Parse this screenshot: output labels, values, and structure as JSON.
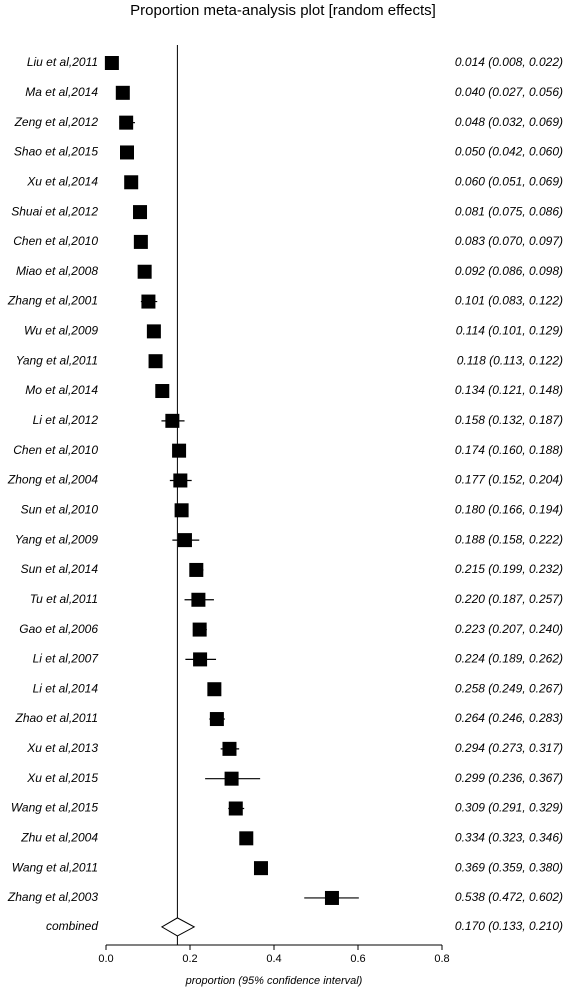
{
  "chart_data": {
    "type": "forest",
    "title": "Proportion meta-analysis plot [random effects]",
    "xlabel": "proportion (95% confidence interval)",
    "categories": [
      "Liu et al,2011",
      "Ma et al,2014",
      "Zeng et al,2012",
      "Shao et al,2015",
      "Xu et al,2014",
      "Shuai et al,2012",
      "Chen et al,2010",
      "Miao et al,2008",
      "Zhang et al,2001",
      "Wu et al,2009",
      "Yang et al,2011",
      "Mo et al,2014",
      "Li et al,2012",
      "Chen et al,2010",
      "Zhong et al,2004",
      "Sun et al,2010",
      "Yang et al,2009",
      "Sun et al,2014",
      "Tu et al,2011",
      "Gao et al,2006",
      "Li et al,2007",
      "Li et al,2014",
      "Zhao et al,2011",
      "Xu et al,2013",
      "Xu et al,2015",
      "Wang et al,2015",
      "Zhu et al,2004",
      "Wang et al,2011",
      "Zhang et al,2003"
    ],
    "values": [
      0.014,
      0.04,
      0.048,
      0.05,
      0.06,
      0.081,
      0.083,
      0.092,
      0.101,
      0.114,
      0.118,
      0.134,
      0.158,
      0.174,
      0.177,
      0.18,
      0.188,
      0.215,
      0.22,
      0.223,
      0.224,
      0.258,
      0.264,
      0.294,
      0.299,
      0.309,
      0.334,
      0.369,
      0.538
    ],
    "lower": [
      0.008,
      0.027,
      0.032,
      0.042,
      0.051,
      0.075,
      0.07,
      0.086,
      0.083,
      0.101,
      0.113,
      0.121,
      0.132,
      0.16,
      0.152,
      0.166,
      0.158,
      0.199,
      0.187,
      0.207,
      0.189,
      0.249,
      0.246,
      0.273,
      0.236,
      0.291,
      0.323,
      0.359,
      0.472
    ],
    "upper": [
      0.022,
      0.056,
      0.069,
      0.06,
      0.069,
      0.086,
      0.097,
      0.098,
      0.122,
      0.129,
      0.122,
      0.148,
      0.187,
      0.188,
      0.204,
      0.194,
      0.222,
      0.232,
      0.257,
      0.24,
      0.262,
      0.267,
      0.283,
      0.317,
      0.367,
      0.329,
      0.346,
      0.38,
      0.602
    ],
    "value_labels": [
      "0.014 (0.008, 0.022)",
      "0.040 (0.027, 0.056)",
      "0.048 (0.032, 0.069)",
      "0.050 (0.042, 0.060)",
      "0.060 (0.051, 0.069)",
      "0.081 (0.075, 0.086)",
      "0.083 (0.070, 0.097)",
      "0.092 (0.086, 0.098)",
      "0.101 (0.083, 0.122)",
      "0.114 (0.101, 0.129)",
      "0.118 (0.113, 0.122)",
      "0.134 (0.121, 0.148)",
      "0.158 (0.132, 0.187)",
      "0.174 (0.160, 0.188)",
      "0.177 (0.152, 0.204)",
      "0.180 (0.166, 0.194)",
      "0.188 (0.158, 0.222)",
      "0.215 (0.199, 0.232)",
      "0.220 (0.187, 0.257)",
      "0.223 (0.207, 0.240)",
      "0.224 (0.189, 0.262)",
      "0.258 (0.249, 0.267)",
      "0.264 (0.246, 0.283)",
      "0.294 (0.273, 0.317)",
      "0.299 (0.236, 0.367)",
      "0.309 (0.291, 0.329)",
      "0.334 (0.323, 0.346)",
      "0.369 (0.359, 0.380)",
      "0.538 (0.472, 0.602)"
    ],
    "combined": {
      "label": "combined",
      "value": 0.17,
      "lower": 0.133,
      "upper": 0.21,
      "value_label": "0.170 (0.133, 0.210)"
    },
    "color": "#000000",
    "xlim": [
      0,
      0.8
    ],
    "xticks": [
      {
        "value": 0,
        "label": "0.0"
      },
      0.2,
      0.4,
      0.6,
      0.8
    ]
  }
}
